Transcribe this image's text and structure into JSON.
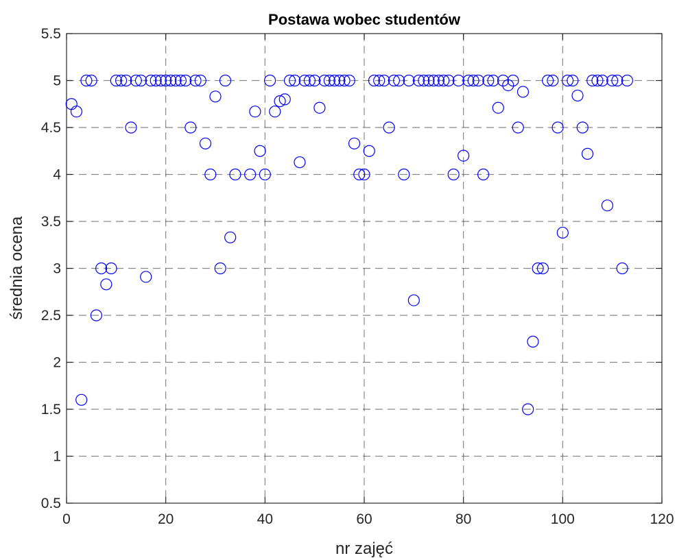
{
  "chart_data": {
    "type": "scatter",
    "title": "Postawa wobec studentów",
    "xlabel": "nr zajęć",
    "ylabel": "średnia ocena",
    "xlim": [
      0,
      120
    ],
    "ylim": [
      0.5,
      5.5
    ],
    "xticks": [
      0,
      20,
      40,
      60,
      80,
      100,
      120
    ],
    "yticks": [
      0.5,
      1,
      1.5,
      2,
      2.5,
      3,
      3.5,
      4,
      4.5,
      5,
      5.5
    ],
    "grid": true,
    "marker": "circle",
    "marker_color": "#0000FF",
    "x": [
      1,
      2,
      3,
      4,
      5,
      6,
      7,
      8,
      9,
      10,
      11,
      12,
      13,
      14,
      15,
      16,
      17,
      18,
      19,
      20,
      21,
      22,
      23,
      24,
      25,
      26,
      27,
      28,
      29,
      30,
      31,
      32,
      33,
      34,
      35,
      36,
      37,
      38,
      39,
      40,
      41,
      42,
      43,
      44,
      45,
      46,
      47,
      48,
      49,
      50,
      51,
      52,
      53,
      54,
      55,
      56,
      57,
      58,
      59,
      60,
      61,
      62,
      63,
      64,
      65,
      66,
      67,
      68,
      69,
      70,
      71,
      72,
      73,
      74,
      75,
      76,
      77,
      78,
      79,
      80,
      81,
      82,
      83,
      84,
      85,
      86,
      87,
      88,
      89,
      90,
      91,
      92,
      93,
      94,
      95,
      96,
      97,
      98,
      99,
      100,
      101,
      102,
      103,
      104,
      105,
      106,
      107,
      108,
      109,
      110,
      111,
      112,
      113
    ],
    "y": [
      4.75,
      4.67,
      1.6,
      5,
      5,
      2.5,
      3,
      2.83,
      3,
      5,
      5,
      5,
      4.5,
      5,
      5,
      2.91,
      5,
      5,
      5,
      5,
      5,
      5,
      5,
      5,
      4.5,
      5,
      5,
      4.33,
      4,
      4.83,
      3,
      5,
      3.33,
      4,
      null,
      null,
      4,
      4.67,
      4.25,
      4,
      5,
      4.67,
      4.78,
      4.8,
      5,
      5,
      4.13,
      5,
      5,
      5,
      4.71,
      5,
      5,
      5,
      5,
      5,
      5,
      4.33,
      4,
      4,
      4.25,
      5,
      5,
      5,
      4.5,
      5,
      5,
      4,
      5,
      2.66,
      5,
      5,
      5,
      5,
      5,
      5,
      5,
      4,
      5,
      4.2,
      5,
      5,
      5,
      4,
      5,
      5,
      4.71,
      5,
      4.95,
      5,
      4.5,
      4.88,
      1.5,
      2.22,
      3,
      3,
      5,
      5,
      4.5,
      3.38,
      5,
      5,
      4.84,
      4.5,
      4.22,
      5,
      5,
      5,
      3.67,
      5,
      5,
      3,
      5
    ]
  }
}
